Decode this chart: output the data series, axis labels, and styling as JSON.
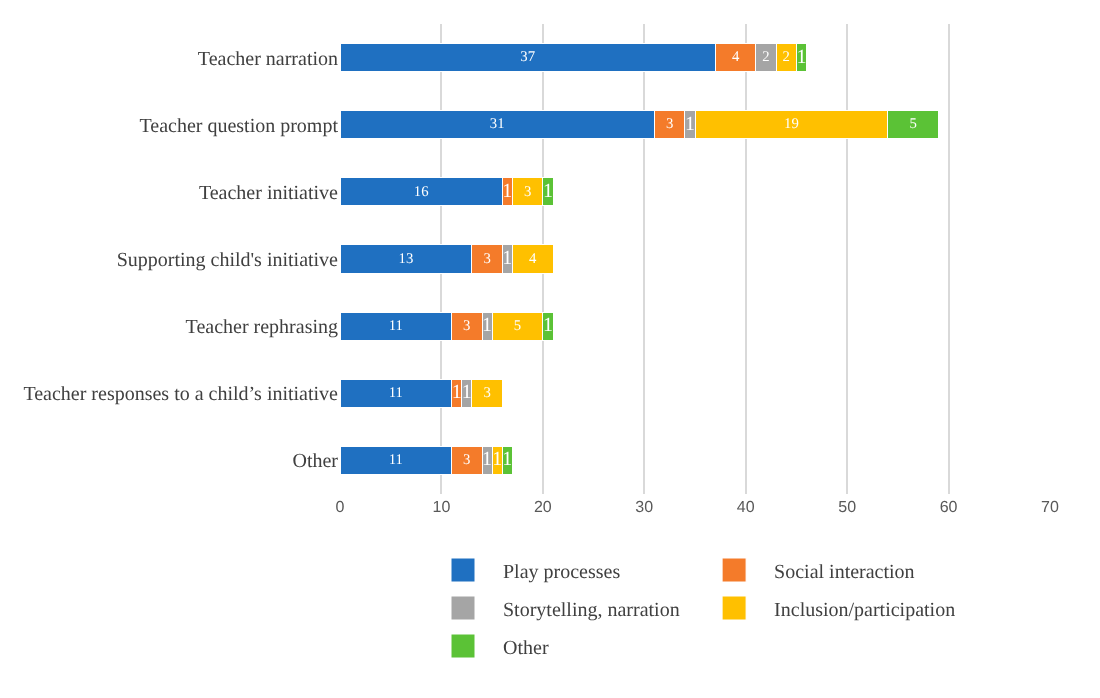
{
  "chart_data": {
    "type": "bar",
    "orientation": "horizontal",
    "stacked": true,
    "data_labels": true,
    "grid": "x",
    "legend": "bottom",
    "categories": [
      "Teacher narration",
      "Teacher question prompt",
      "Teacher initiative",
      "Supporting child's initiative",
      "Teacher rephrasing",
      "Teacher responses to a child’s initiative",
      "Other"
    ],
    "xlim": [
      0,
      70
    ],
    "xticks": [
      0,
      10,
      20,
      30,
      40,
      50,
      60,
      70
    ],
    "series": [
      {
        "name": "Play processes",
        "color": "#1f70c1",
        "values": [
          37,
          31,
          16,
          13,
          11,
          11,
          11
        ]
      },
      {
        "name": "Social interaction",
        "color": "#f47b2a",
        "values": [
          4,
          3,
          1,
          3,
          3,
          1,
          3
        ]
      },
      {
        "name": "Storytelling, narration",
        "color": "#a5a5a5",
        "values": [
          2,
          1,
          null,
          1,
          1,
          1,
          1
        ]
      },
      {
        "name": "Inclusion/participation",
        "color": "#ffc000",
        "values": [
          2,
          19,
          3,
          4,
          5,
          3,
          1
        ]
      },
      {
        "name": "Other",
        "color": "#5bc236",
        "values": [
          1,
          5,
          1,
          null,
          1,
          null,
          1
        ]
      }
    ]
  }
}
